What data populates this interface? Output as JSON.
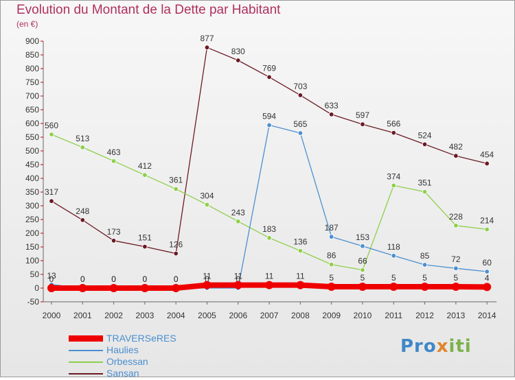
{
  "header": {
    "title": "Evolution du Montant de la Dette par Habitant",
    "subtitle": "(en €)"
  },
  "brand": {
    "p1": "Pro",
    "p2": "x",
    "p3": "iti"
  },
  "chart_data": {
    "type": "line",
    "title": "Evolution du Montant de la Dette par Habitant",
    "subtitle": "(en €)",
    "x": [
      "2000",
      "2001",
      "2002",
      "2003",
      "2004",
      "2005",
      "2006",
      "2007",
      "2008",
      "2009",
      "2010",
      "2011",
      "2012",
      "2013",
      "2014"
    ],
    "ylim": [
      -50,
      900
    ],
    "yticks": [
      -50,
      0,
      50,
      100,
      150,
      200,
      250,
      300,
      350,
      400,
      450,
      500,
      550,
      600,
      650,
      700,
      750,
      800,
      850,
      900
    ],
    "grid": false,
    "legend_position": "bottom-left",
    "series": [
      {
        "name": "Sansan",
        "color": "#6b1a24",
        "labels": [
          "317",
          "248",
          "173",
          "151",
          "126",
          "877",
          "830",
          "769",
          "703",
          "633",
          "597",
          "566",
          "524",
          "482",
          "454"
        ],
        "values": [
          317,
          248,
          173,
          151,
          126,
          877,
          830,
          769,
          703,
          633,
          597,
          566,
          524,
          482,
          454
        ]
      },
      {
        "name": "Orbessan",
        "color": "#8ecf4a",
        "labels": [
          "560",
          "513",
          "463",
          "412",
          "361",
          "304",
          "243",
          "183",
          "136",
          "86",
          "66",
          "374",
          "351",
          "228",
          "214"
        ],
        "values": [
          560,
          513,
          463,
          412,
          361,
          304,
          243,
          183,
          136,
          86,
          66,
          374,
          351,
          228,
          214
        ]
      },
      {
        "name": "Haulies",
        "color": "#4b8fd0",
        "labels": [
          "13",
          "0",
          "0",
          "0",
          "0",
          "0",
          "0",
          "594",
          "565",
          "187",
          "153",
          "118",
          "85",
          "72",
          "60"
        ],
        "values": [
          13,
          0,
          0,
          0,
          0,
          0,
          0,
          594,
          565,
          187,
          153,
          118,
          85,
          72,
          60
        ]
      },
      {
        "name": "TRAVERSeRES",
        "color": "#ee0000",
        "labels": [
          "0",
          "0",
          "0",
          "0",
          "0",
          "11",
          "11",
          "11",
          "11",
          "5",
          "5",
          "5",
          "5",
          "5",
          "4"
        ],
        "values": [
          0,
          0,
          0,
          0,
          0,
          11,
          11,
          11,
          11,
          5,
          5,
          5,
          5,
          5,
          4
        ]
      }
    ]
  },
  "legend": [
    {
      "label": "TRAVERSeRES",
      "color": "#ee0000"
    },
    {
      "label": "Haulies",
      "color": "#4b8fd0"
    },
    {
      "label": "Orbessan",
      "color": "#8ecf4a"
    },
    {
      "label": "Sansan",
      "color": "#6b1a24"
    }
  ]
}
